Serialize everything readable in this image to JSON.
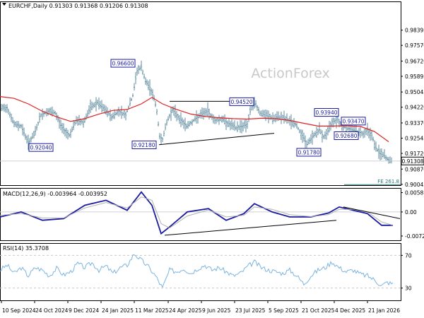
{
  "header": {
    "symbol_line": "EURCHF,Daily  0.91303 0.91368 0.91206 0.91308"
  },
  "watermark": "ActionForex",
  "colors": {
    "bars": "#5f8da0",
    "ma": "#e02020",
    "macd": "#1a1aa0",
    "signal": "#b0b0b0",
    "rsi": "#7ab4df",
    "label_border": "#1a1aa0",
    "label_text": "#1a1aa0",
    "trendline": "#000000",
    "fe_line": "#2a7a7a",
    "grid": "#e8e8e8",
    "hline": "#d0d0d0"
  },
  "x_axis": {
    "labels": [
      "10 Sep 2024",
      "24 Oct 2024",
      "9 Dec 2024",
      "24 Jan 2025",
      "11 Mar 2025",
      "24 Apr 2025",
      "9 Jun 2025",
      "23 Jul 2025",
      "5 Sep 2025",
      "21 Oct 2025",
      "4 Dec 2025",
      "21 Jan 2026"
    ]
  },
  "chart_data": [
    {
      "type": "ohlc",
      "ylim": [
        0.9,
        0.9995
      ],
      "y_ticks": [
        "0.98395",
        "0.97570",
        "0.96720",
        "0.95895",
        "0.95045",
        "0.94220",
        "0.93370",
        "0.92545",
        "0.91720",
        "0.90870",
        "0.90045"
      ],
      "tick_values": [
        0.98395,
        0.9757,
        0.9672,
        0.95895,
        0.95045,
        0.9422,
        0.9337,
        0.92545,
        0.9172,
        0.9087,
        0.90045
      ],
      "current_price": {
        "label": "0.91308",
        "value": 0.91308
      },
      "close_path": [
        [
          0,
          0.9415
        ],
        [
          10,
          0.942
        ],
        [
          20,
          0.933
        ],
        [
          30,
          0.932
        ],
        [
          40,
          0.923
        ],
        [
          48,
          0.927
        ],
        [
          58,
          0.938
        ],
        [
          68,
          0.94
        ],
        [
          78,
          0.939
        ],
        [
          88,
          0.931
        ],
        [
          98,
          0.927
        ],
        [
          108,
          0.935
        ],
        [
          118,
          0.934
        ],
        [
          128,
          0.942
        ],
        [
          138,
          0.9445
        ],
        [
          148,
          0.941
        ],
        [
          158,
          0.937
        ],
        [
          168,
          0.94
        ],
        [
          178,
          0.938
        ],
        [
          188,
          0.9485
        ],
        [
          194,
          0.962
        ],
        [
          200,
          0.964
        ],
        [
          206,
          0.956
        ],
        [
          212,
          0.953
        ],
        [
          218,
          0.947
        ],
        [
          222,
          0.94
        ],
        [
          226,
          0.926
        ],
        [
          230,
          0.925
        ],
        [
          236,
          0.934
        ],
        [
          244,
          0.941
        ],
        [
          254,
          0.936
        ],
        [
          264,
          0.932
        ],
        [
          274,
          0.935
        ],
        [
          284,
          0.938
        ],
        [
          294,
          0.94
        ],
        [
          304,
          0.935
        ],
        [
          314,
          0.936
        ],
        [
          324,
          0.933
        ],
        [
          334,
          0.931
        ],
        [
          342,
          0.932
        ],
        [
          350,
          0.933
        ],
        [
          356,
          0.943
        ],
        [
          362,
          0.944
        ],
        [
          368,
          0.939
        ],
        [
          378,
          0.9375
        ],
        [
          388,
          0.936
        ],
        [
          398,
          0.937
        ],
        [
          408,
          0.935
        ],
        [
          418,
          0.933
        ],
        [
          428,
          0.927
        ],
        [
          434,
          0.922
        ],
        [
          444,
          0.927
        ],
        [
          452,
          0.93
        ],
        [
          458,
          0.926
        ],
        [
          464,
          0.929
        ],
        [
          470,
          0.9345
        ],
        [
          478,
          0.9355
        ],
        [
          484,
          0.932
        ],
        [
          490,
          0.931
        ],
        [
          498,
          0.93
        ],
        [
          506,
          0.929
        ],
        [
          514,
          0.928
        ],
        [
          520,
          0.93
        ],
        [
          526,
          0.927
        ],
        [
          532,
          0.92
        ],
        [
          538,
          0.917
        ],
        [
          544,
          0.916
        ],
        [
          548,
          0.914
        ],
        [
          552,
          0.9131
        ]
      ],
      "ma_path": [
        [
          0,
          0.948
        ],
        [
          20,
          0.947
        ],
        [
          40,
          0.944
        ],
        [
          60,
          0.94
        ],
        [
          80,
          0.937
        ],
        [
          100,
          0.9345
        ],
        [
          120,
          0.936
        ],
        [
          140,
          0.9385
        ],
        [
          160,
          0.9405
        ],
        [
          180,
          0.941
        ],
        [
          200,
          0.944
        ],
        [
          215,
          0.9475
        ],
        [
          230,
          0.944
        ],
        [
          250,
          0.941
        ],
        [
          270,
          0.9385
        ],
        [
          290,
          0.9372
        ],
        [
          310,
          0.9365
        ],
        [
          330,
          0.936
        ],
        [
          350,
          0.9358
        ],
        [
          370,
          0.9362
        ],
        [
          390,
          0.936
        ],
        [
          410,
          0.935
        ],
        [
          430,
          0.9335
        ],
        [
          450,
          0.932
        ],
        [
          470,
          0.932
        ],
        [
          490,
          0.9322
        ],
        [
          510,
          0.9318
        ],
        [
          530,
          0.929
        ],
        [
          550,
          0.9235
        ]
      ],
      "trendlines": [
        {
          "from": [
            225,
            0.9219
          ],
          "to": [
            388,
            0.9281
          ]
        },
        {
          "from": [
            240,
            0.9454
          ],
          "to": [
            358,
            0.9454
          ]
        }
      ],
      "fib_line": {
        "label": "FE 261.8",
        "value": 0.9003,
        "x_range": [
          487,
          567
        ]
      },
      "annotations": [
        {
          "label": "0.96600",
          "value": 0.966,
          "x": 174
        },
        {
          "label": "0.94520",
          "value": 0.9452,
          "x": 342
        },
        {
          "label": "0.93940",
          "value": 0.9394,
          "x": 462
        },
        {
          "label": "0.93470",
          "value": 0.9347,
          "x": 500
        },
        {
          "label": "0.92680",
          "value": 0.9268,
          "x": 490
        },
        {
          "label": "0.92180",
          "value": 0.9218,
          "x": 204
        },
        {
          "label": "0.91780",
          "value": 0.9178,
          "x": 437
        },
        {
          "label": "0.92040",
          "value": 0.9204,
          "x": 58
        }
      ]
    },
    {
      "type": "line",
      "title": "MACD(12,26,9) -0.003964 -0.003952",
      "ylim": [
        -0.0085,
        0.0072
      ],
      "y_ticks": [
        "0.005814",
        "0.00",
        "-0.007222"
      ],
      "tick_values": [
        0.005814,
        0.0,
        -0.007222
      ],
      "zero_line": 0,
      "series": [
        {
          "role": "macd",
          "path": [
            [
              0,
              -0.0015
            ],
            [
              30,
              0.0
            ],
            [
              60,
              -0.0025
            ],
            [
              90,
              -0.002
            ],
            [
              120,
              0.002
            ],
            [
              150,
              0.0035
            ],
            [
              180,
              0.0005
            ],
            [
              200,
              0.006
            ],
            [
              215,
              0.002
            ],
            [
              228,
              -0.0065
            ],
            [
              240,
              -0.0045
            ],
            [
              265,
              0.0
            ],
            [
              295,
              0.001
            ],
            [
              320,
              -0.0025
            ],
            [
              345,
              -0.0005
            ],
            [
              360,
              0.0025
            ],
            [
              385,
              0.0
            ],
            [
              410,
              -0.0015
            ],
            [
              440,
              -0.0015
            ],
            [
              465,
              -0.0003
            ],
            [
              480,
              0.0015
            ],
            [
              500,
              0.0005
            ],
            [
              520,
              -0.0005
            ],
            [
              540,
              -0.004
            ],
            [
              556,
              -0.004
            ]
          ]
        },
        {
          "role": "signal",
          "path": [
            [
              0,
              -0.001
            ],
            [
              30,
              -0.0005
            ],
            [
              60,
              -0.0018
            ],
            [
              90,
              -0.0018
            ],
            [
              120,
              0.0012
            ],
            [
              150,
              0.0028
            ],
            [
              180,
              0.0012
            ],
            [
              200,
              0.0045
            ],
            [
              215,
              0.0035
            ],
            [
              228,
              -0.0035
            ],
            [
              240,
              -0.0048
            ],
            [
              265,
              -0.0012
            ],
            [
              295,
              0.0006
            ],
            [
              320,
              -0.0015
            ],
            [
              345,
              -0.001
            ],
            [
              360,
              0.0015
            ],
            [
              385,
              0.0008
            ],
            [
              410,
              -0.0008
            ],
            [
              440,
              -0.0014
            ],
            [
              465,
              -0.0008
            ],
            [
              480,
              0.0008
            ],
            [
              500,
              0.0008
            ],
            [
              520,
              0.0
            ],
            [
              540,
              -0.003
            ],
            [
              556,
              -0.004
            ]
          ]
        }
      ],
      "trendlines": [
        {
          "from": [
            233,
            -0.007
          ],
          "to": [
            476,
            -0.0025
          ]
        },
        {
          "from": [
            486,
            0.0015
          ],
          "to": [
            566,
            -0.002
          ]
        }
      ]
    },
    {
      "type": "line",
      "title": "RSI(14) 35.3708",
      "ylim": [
        15,
        85
      ],
      "y_ticks": [
        "70",
        "30"
      ],
      "tick_values": [
        70,
        30
      ],
      "series": [
        {
          "role": "rsi",
          "path": [
            [
              0,
              52
            ],
            [
              10,
              58
            ],
            [
              20,
              48
            ],
            [
              30,
              55
            ],
            [
              40,
              45
            ],
            [
              50,
              55
            ],
            [
              60,
              52
            ],
            [
              70,
              45
            ],
            [
              80,
              54
            ],
            [
              90,
              46
            ],
            [
              100,
              50
            ],
            [
              110,
              60
            ],
            [
              120,
              55
            ],
            [
              130,
              61
            ],
            [
              140,
              52
            ],
            [
              150,
              57
            ],
            [
              160,
              48
            ],
            [
              170,
              55
            ],
            [
              180,
              58
            ],
            [
              190,
              72
            ],
            [
              200,
              64
            ],
            [
              210,
              56
            ],
            [
              220,
              45
            ],
            [
              230,
              30
            ],
            [
              240,
              52
            ],
            [
              250,
              50
            ],
            [
              260,
              54
            ],
            [
              270,
              48
            ],
            [
              280,
              54
            ],
            [
              290,
              58
            ],
            [
              300,
              52
            ],
            [
              310,
              55
            ],
            [
              320,
              50
            ],
            [
              330,
              45
            ],
            [
              340,
              48
            ],
            [
              350,
              56
            ],
            [
              360,
              62
            ],
            [
              370,
              55
            ],
            [
              380,
              52
            ],
            [
              390,
              50
            ],
            [
              400,
              48
            ],
            [
              410,
              52
            ],
            [
              420,
              45
            ],
            [
              430,
              35
            ],
            [
              440,
              45
            ],
            [
              450,
              52
            ],
            [
              460,
              55
            ],
            [
              470,
              62
            ],
            [
              480,
              55
            ],
            [
              490,
              50
            ],
            [
              500,
              52
            ],
            [
              510,
              47
            ],
            [
              520,
              45
            ],
            [
              530,
              40
            ],
            [
              540,
              33
            ],
            [
              548,
              37
            ],
            [
              556,
              35
            ]
          ]
        }
      ]
    }
  ]
}
